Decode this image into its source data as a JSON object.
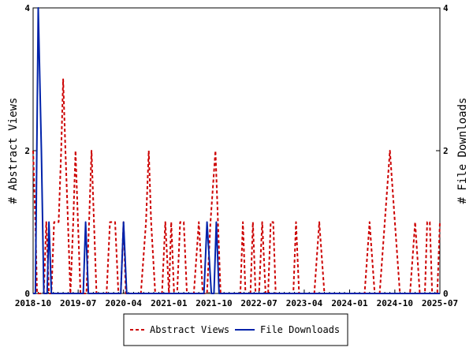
{
  "chart_data": {
    "type": "line",
    "ylabel_left": "# Abstract Views",
    "ylabel_right": "# File Downloads",
    "ylim": [
      0,
      4
    ],
    "y_ticks": [
      "0",
      "2",
      "4"
    ],
    "x_range": [
      "2018-10",
      "2025-07"
    ],
    "x_ticks": [
      "2018-10",
      "2019-07",
      "2020-04",
      "2021-01",
      "2021-10",
      "2022-07",
      "2023-04",
      "2024-01",
      "2024-10",
      "2025-07"
    ],
    "legend": "bottom-center",
    "grid": false,
    "series": [
      {
        "name": "Abstract Views",
        "color": "#cc0000",
        "style": "dashed",
        "axis": "left",
        "points": [
          [
            "2018-10-01",
            2
          ],
          [
            "2018-10-15",
            1
          ],
          [
            "2018-10-25",
            0
          ],
          [
            "2018-11-20",
            0
          ],
          [
            "2018-12-05",
            0
          ],
          [
            "2018-12-20",
            1
          ],
          [
            "2019-01-05",
            0
          ],
          [
            "2019-01-20",
            0
          ],
          [
            "2019-02-05",
            1
          ],
          [
            "2019-02-20",
            1
          ],
          [
            "2019-03-05",
            1
          ],
          [
            "2019-03-20",
            2
          ],
          [
            "2019-04-01",
            3
          ],
          [
            "2019-04-15",
            2
          ],
          [
            "2019-04-30",
            1
          ],
          [
            "2019-05-15",
            0
          ],
          [
            "2019-06-01",
            1
          ],
          [
            "2019-06-15",
            2
          ],
          [
            "2019-06-30",
            1
          ],
          [
            "2019-07-15",
            0
          ],
          [
            "2019-08-01",
            0
          ],
          [
            "2019-08-20",
            0
          ],
          [
            "2019-09-05",
            1
          ],
          [
            "2019-09-20",
            2
          ],
          [
            "2019-10-05",
            1
          ],
          [
            "2019-10-20",
            0
          ],
          [
            "2019-12-20",
            0
          ],
          [
            "2020-01-10",
            1
          ],
          [
            "2020-02-10",
            1
          ],
          [
            "2020-03-01",
            0
          ],
          [
            "2020-03-15",
            0
          ],
          [
            "2020-04-01",
            1
          ],
          [
            "2020-04-15",
            0
          ],
          [
            "2020-07-15",
            0
          ],
          [
            "2020-08-15",
            1
          ],
          [
            "2020-09-01",
            2
          ],
          [
            "2020-09-15",
            1
          ],
          [
            "2020-10-10",
            0
          ],
          [
            "2020-11-20",
            0
          ],
          [
            "2020-12-10",
            1
          ],
          [
            "2021-01-01",
            0
          ],
          [
            "2021-01-15",
            1
          ],
          [
            "2021-02-01",
            0
          ],
          [
            "2021-02-20",
            0
          ],
          [
            "2021-03-10",
            1
          ],
          [
            "2021-04-01",
            1
          ],
          [
            "2021-04-20",
            0
          ],
          [
            "2021-06-01",
            0
          ],
          [
            "2021-07-01",
            1
          ],
          [
            "2021-07-25",
            0
          ],
          [
            "2021-08-20",
            0
          ],
          [
            "2021-09-10",
            1
          ],
          [
            "2021-10-10",
            2
          ],
          [
            "2021-10-25",
            1
          ],
          [
            "2021-11-10",
            0
          ],
          [
            "2022-03-10",
            0
          ],
          [
            "2022-03-25",
            1
          ],
          [
            "2022-04-10",
            0
          ],
          [
            "2022-05-10",
            0
          ],
          [
            "2022-05-25",
            1
          ],
          [
            "2022-06-10",
            0
          ],
          [
            "2022-07-01",
            0
          ],
          [
            "2022-07-20",
            1
          ],
          [
            "2022-08-10",
            0
          ],
          [
            "2022-08-25",
            0
          ],
          [
            "2022-09-10",
            1
          ],
          [
            "2022-09-25",
            1
          ],
          [
            "2022-10-10",
            0
          ],
          [
            "2023-01-25",
            0
          ],
          [
            "2023-02-10",
            1
          ],
          [
            "2023-03-01",
            0
          ],
          [
            "2023-06-01",
            0
          ],
          [
            "2023-07-01",
            1
          ],
          [
            "2023-08-01",
            0
          ],
          [
            "2024-04-01",
            0
          ],
          [
            "2024-05-01",
            1
          ],
          [
            "2024-06-01",
            0
          ],
          [
            "2024-07-01",
            0
          ],
          [
            "2024-08-01",
            1
          ],
          [
            "2024-09-01",
            2
          ],
          [
            "2024-10-01",
            1
          ],
          [
            "2024-11-01",
            0
          ],
          [
            "2025-01-01",
            0
          ],
          [
            "2025-02-01",
            1
          ],
          [
            "2025-03-01",
            0
          ],
          [
            "2025-04-01",
            0
          ],
          [
            "2025-04-15",
            1
          ],
          [
            "2025-05-01",
            1
          ],
          [
            "2025-05-15",
            0
          ],
          [
            "2025-06-15",
            0
          ],
          [
            "2025-07-01",
            1
          ]
        ]
      },
      {
        "name": "File Downloads",
        "color": "#0022aa",
        "style": "solid",
        "axis": "right",
        "points": [
          [
            "2018-10-01",
            0
          ],
          [
            "2018-10-15",
            0
          ],
          [
            "2018-11-01",
            4
          ],
          [
            "2018-11-20",
            2
          ],
          [
            "2018-12-05",
            0
          ],
          [
            "2018-12-25",
            0
          ],
          [
            "2019-01-05",
            1
          ],
          [
            "2019-01-20",
            0
          ],
          [
            "2019-02-05",
            0
          ],
          [
            "2019-07-20",
            0
          ],
          [
            "2019-08-01",
            0
          ],
          [
            "2019-08-15",
            1
          ],
          [
            "2019-09-01",
            0
          ],
          [
            "2019-09-15",
            0
          ],
          [
            "2020-03-15",
            0
          ],
          [
            "2020-04-01",
            1
          ],
          [
            "2020-04-20",
            0
          ],
          [
            "2021-08-01",
            0
          ],
          [
            "2021-08-20",
            1
          ],
          [
            "2021-09-15",
            0
          ],
          [
            "2021-10-01",
            0
          ],
          [
            "2021-10-15",
            1
          ],
          [
            "2021-11-01",
            0
          ],
          [
            "2025-07-01",
            0
          ]
        ]
      }
    ]
  }
}
